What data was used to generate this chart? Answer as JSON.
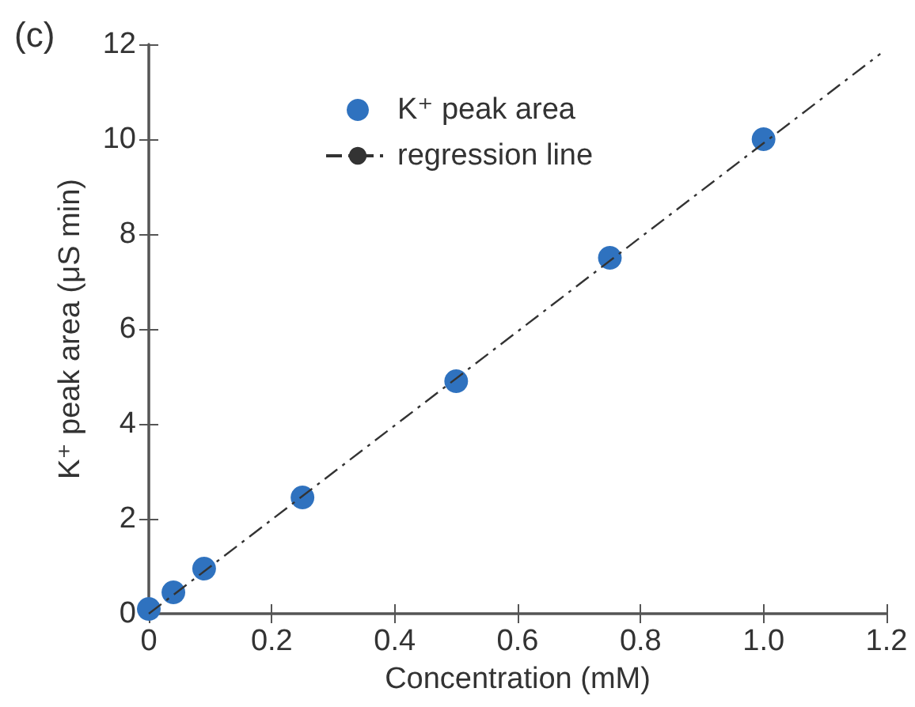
{
  "chart_data": {
    "type": "scatter",
    "title": "(c)",
    "xlabel": "Concentration (mM)",
    "ylabel": "K⁺ peak area (μS min)",
    "series": [
      {
        "name": "K⁺ peak area",
        "type": "scatter",
        "color": "#2f72bf",
        "marker": "circle",
        "x": [
          0,
          0.04,
          0.09,
          0.25,
          0.5,
          0.75,
          1.0
        ],
        "values": [
          0.1,
          0.45,
          0.95,
          2.45,
          4.9,
          7.5,
          10.0
        ]
      },
      {
        "name": "regression line",
        "type": "line",
        "color": "#333333",
        "line_style": "dashdot",
        "marker": "none",
        "x": [
          0,
          1.19
        ],
        "values": [
          0,
          11.8
        ]
      }
    ],
    "xlim": [
      0,
      1.2
    ],
    "xticks": [
      0,
      0.2,
      0.4,
      0.6,
      0.8,
      {
        "value": 1,
        "label": "1.0"
      },
      1.2
    ],
    "ylim": [
      0,
      12
    ],
    "yticks": [
      0,
      2,
      4,
      6,
      8,
      10,
      12
    ],
    "grid": false,
    "legend": "top"
  }
}
